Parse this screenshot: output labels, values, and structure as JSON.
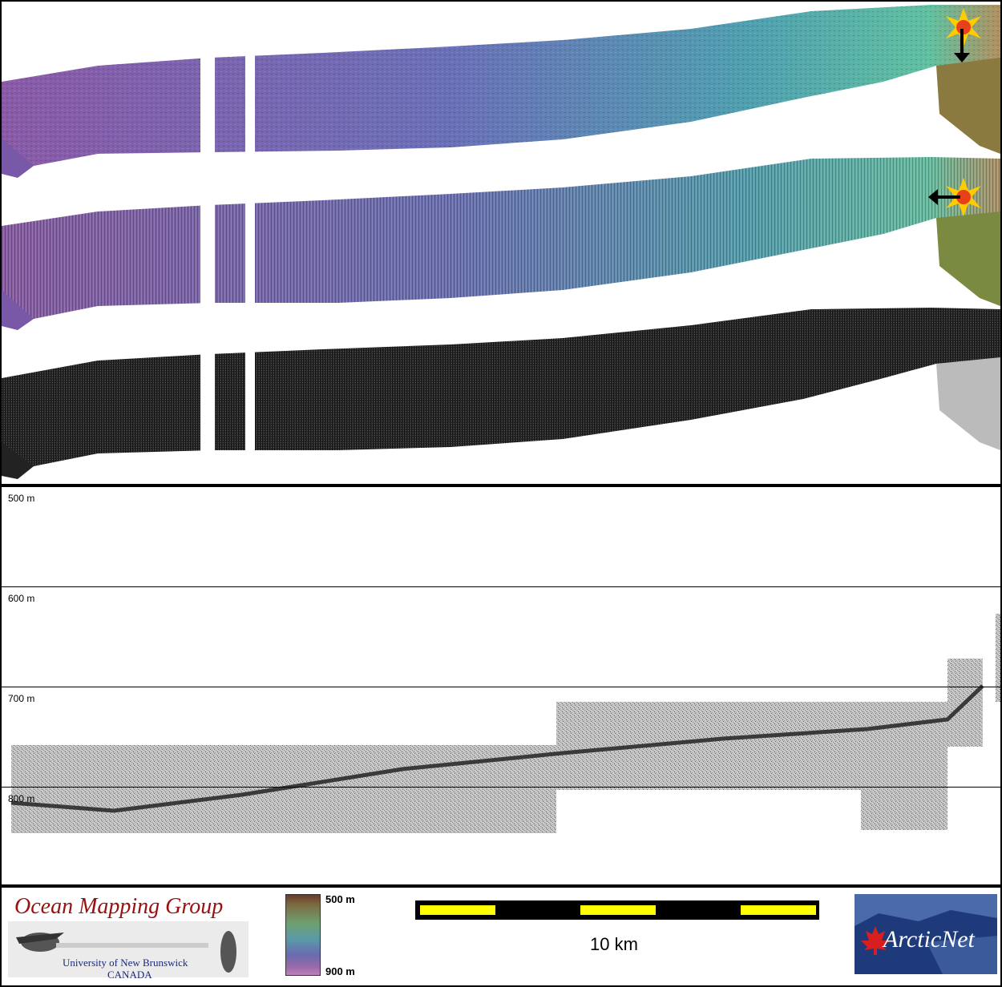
{
  "panels": {
    "profile_depth_labels": [
      "500 m",
      "600 m",
      "700 m",
      "800 m"
    ]
  },
  "footer": {
    "org_title": "Ocean Mapping Group",
    "org_sub1": "University of New Brunswick",
    "org_sub2": "CANADA",
    "colorbar_top": "500 m",
    "colorbar_bottom": "900 m",
    "scale_label": "10 km",
    "partner_logo_text": "ArcticNet"
  },
  "colors": {
    "swath_low": "#7a55a8",
    "swath_mid": "#5a8ac0",
    "swath_high": "#4fb0a0",
    "scale_yellow": "#ffff00",
    "arcticnet_blue": "#1f3a7a",
    "omg_red": "#9a1010"
  },
  "icons": [
    "sun-illumination-icon",
    "arrow-down-icon",
    "arrow-left-icon",
    "maple-leaf-icon"
  ]
}
